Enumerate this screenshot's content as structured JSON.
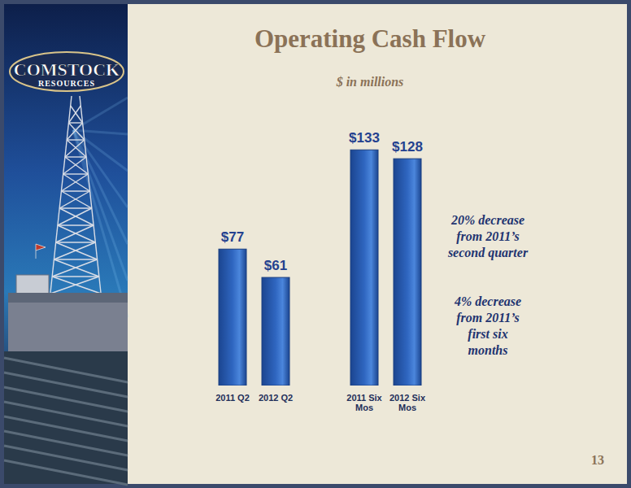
{
  "logo": {
    "name": "COMSTOCK",
    "subname": "RESOURCES"
  },
  "page_number": 13,
  "chart_data": {
    "type": "bar",
    "title": "Operating Cash Flow",
    "subtitle": "$ in millions",
    "categories": [
      "2011 Q2",
      "2012 Q2",
      "2011 Six\nMos",
      "2012 Six\nMos"
    ],
    "values": [
      77,
      61,
      133,
      128
    ],
    "value_labels": [
      "$77",
      "$61",
      "$133",
      "$128"
    ],
    "data_labels": true,
    "color": "#2f66c0",
    "grid": false,
    "ylim": [
      0,
      140
    ],
    "tick_labels": "x",
    "annotations": [
      "20% decrease\nfrom 2011’s\nsecond quarter",
      "4% decrease\nfrom 2011’s\nfirst six\nmonths"
    ]
  }
}
